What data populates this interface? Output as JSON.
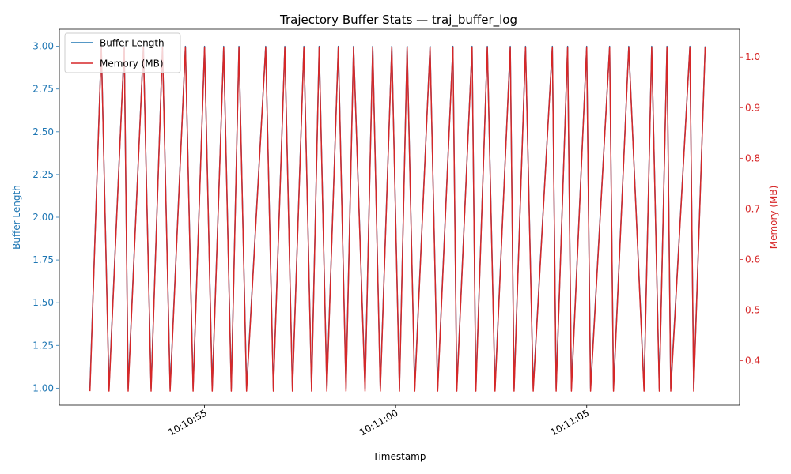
{
  "chart_data": {
    "type": "line",
    "title": "Trajectory Buffer Stats — traj_buffer_log",
    "xlabel": "Timestamp",
    "ylabel_left": "Buffer Length",
    "ylabel_right": "Memory (MB)",
    "x_ticks": [
      "10:10:55",
      "10:11:00",
      "10:11:05"
    ],
    "x_range": [
      "10:10:51.2",
      "10:11:09.0"
    ],
    "y_left_range": [
      0.9,
      3.1
    ],
    "y_left_ticks": [
      "1.00",
      "1.25",
      "1.50",
      "1.75",
      "2.00",
      "2.25",
      "2.50",
      "2.75",
      "3.00"
    ],
    "y_right_range": [
      0.312,
      1.055
    ],
    "y_right_ticks": [
      "0.4",
      "0.5",
      "0.6",
      "0.7",
      "0.8",
      "0.9",
      "1.0"
    ],
    "legend_position": "top-left",
    "grid": false,
    "colors": {
      "buffer": "#1f77b4",
      "memory": "#d62728"
    },
    "x_times": [
      "10:10:52.0",
      "10:10:52.3",
      "10:10:52.5",
      "10:10:52.9",
      "10:10:53.0",
      "10:10:53.4",
      "10:10:53.6",
      "10:10:53.9",
      "10:10:54.1",
      "10:10:54.5",
      "10:10:54.7",
      "10:10:55.0",
      "10:10:55.2",
      "10:10:55.5",
      "10:10:55.7",
      "10:10:55.9",
      "10:10:56.1",
      "10:10:56.6",
      "10:10:56.8",
      "10:10:57.1",
      "10:10:57.3",
      "10:10:57.6",
      "10:10:57.8",
      "10:10:58.0",
      "10:10:58.2",
      "10:10:58.5",
      "10:10:58.7",
      "10:10:58.9",
      "10:10:59.2",
      "10:10:59.4",
      "10:10:59.6",
      "10:10:59.9",
      "10:11:00.1",
      "10:11:00.3",
      "10:11:00.5",
      "10:11:00.9",
      "10:11:01.1",
      "10:11:01.5",
      "10:11:01.6",
      "10:11:02.0",
      "10:11:02.1",
      "10:11:02.4",
      "10:11:02.6",
      "10:11:03.0",
      "10:11:03.1",
      "10:11:03.4",
      "10:11:03.6",
      "10:11:04.1",
      "10:11:04.2",
      "10:11:04.5",
      "10:11:04.6",
      "10:11:05.0",
      "10:11:05.1",
      "10:11:05.6",
      "10:11:05.7",
      "10:11:06.1",
      "10:11:06.5",
      "10:11:06.7",
      "10:11:06.9",
      "10:11:07.1",
      "10:11:07.2",
      "10:11:07.7",
      "10:11:07.8",
      "10:11:08.1"
    ],
    "series": [
      {
        "name": "Buffer Length",
        "axis": "left",
        "values": [
          1,
          3,
          1,
          3,
          1,
          3,
          1,
          3,
          1,
          3,
          1,
          3,
          1,
          3,
          1,
          3,
          1,
          3,
          1,
          3,
          1,
          3,
          1,
          3,
          1,
          3,
          1,
          3,
          1,
          3,
          1,
          3,
          1,
          3,
          1,
          3,
          1,
          3,
          1,
          3,
          1,
          3,
          1,
          3,
          1,
          3,
          1,
          3,
          1,
          3,
          1,
          3,
          1,
          3,
          1,
          3,
          1,
          3,
          1,
          3,
          1,
          3,
          1,
          3
        ]
      },
      {
        "name": "Memory (MB)",
        "axis": "right",
        "values": [
          0.34,
          1.02,
          0.34,
          1.02,
          0.34,
          1.02,
          0.34,
          1.02,
          0.34,
          1.02,
          0.34,
          1.02,
          0.34,
          1.02,
          0.34,
          1.02,
          0.34,
          1.02,
          0.34,
          1.02,
          0.34,
          1.02,
          0.34,
          1.02,
          0.34,
          1.02,
          0.34,
          1.02,
          0.34,
          1.02,
          0.34,
          1.02,
          0.34,
          1.02,
          0.34,
          1.02,
          0.34,
          1.02,
          0.34,
          1.02,
          0.34,
          1.02,
          0.34,
          1.02,
          0.34,
          1.02,
          0.34,
          1.02,
          0.34,
          1.02,
          0.34,
          1.02,
          0.34,
          1.02,
          0.34,
          1.02,
          0.34,
          1.02,
          0.34,
          1.02,
          0.34,
          1.02,
          0.34,
          1.02
        ]
      }
    ]
  }
}
